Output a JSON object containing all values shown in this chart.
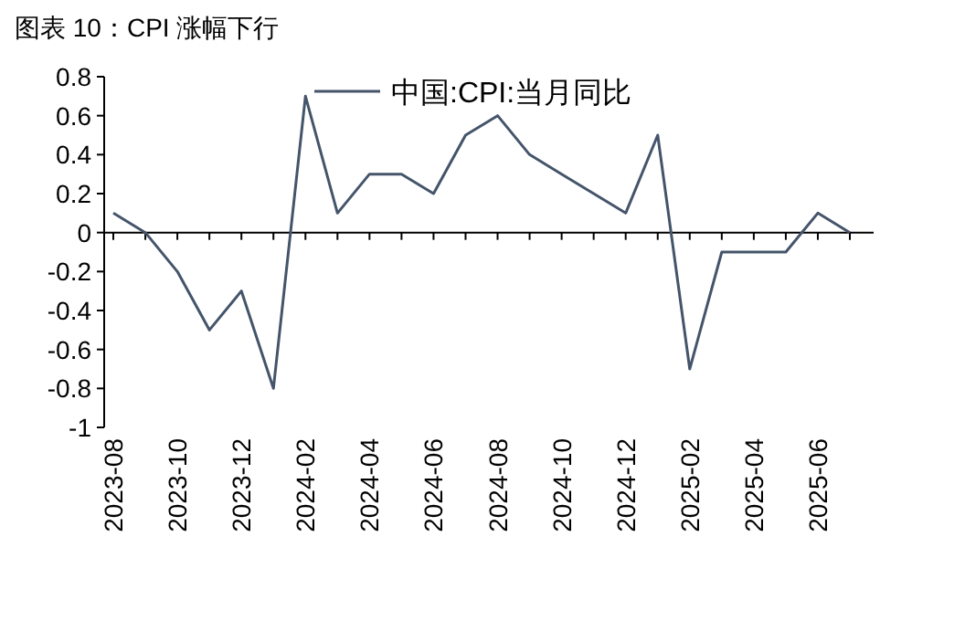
{
  "chart_data": {
    "type": "line",
    "title": "图表 10：CPI 涨幅下行",
    "categories": [
      "2023-08",
      null,
      "2023-10",
      null,
      "2023-12",
      null,
      "2024-02",
      null,
      "2024-04",
      null,
      "2024-06",
      null,
      "2024-08",
      null,
      "2024-10",
      null,
      "2024-12",
      null,
      "2025-02",
      null,
      "2025-04",
      null,
      "2025-06",
      null
    ],
    "series": [
      {
        "name": "中国:CPI:当月同比",
        "color": "#44546a",
        "values": [
          0.1,
          0.0,
          -0.2,
          -0.5,
          -0.3,
          -0.8,
          0.7,
          0.1,
          0.3,
          0.3,
          0.2,
          0.5,
          0.6,
          0.4,
          0.3,
          0.2,
          0.1,
          0.5,
          -0.7,
          -0.1,
          -0.1,
          -0.1,
          0.1,
          0.0
        ]
      }
    ],
    "ylim": [
      -1,
      0.8
    ],
    "yticks": [
      0.8,
      0.6,
      0.4,
      0.2,
      0,
      -0.2,
      -0.4,
      -0.6,
      -0.8,
      -1
    ],
    "legend": "top",
    "marker": "none",
    "line_style": "solid"
  }
}
